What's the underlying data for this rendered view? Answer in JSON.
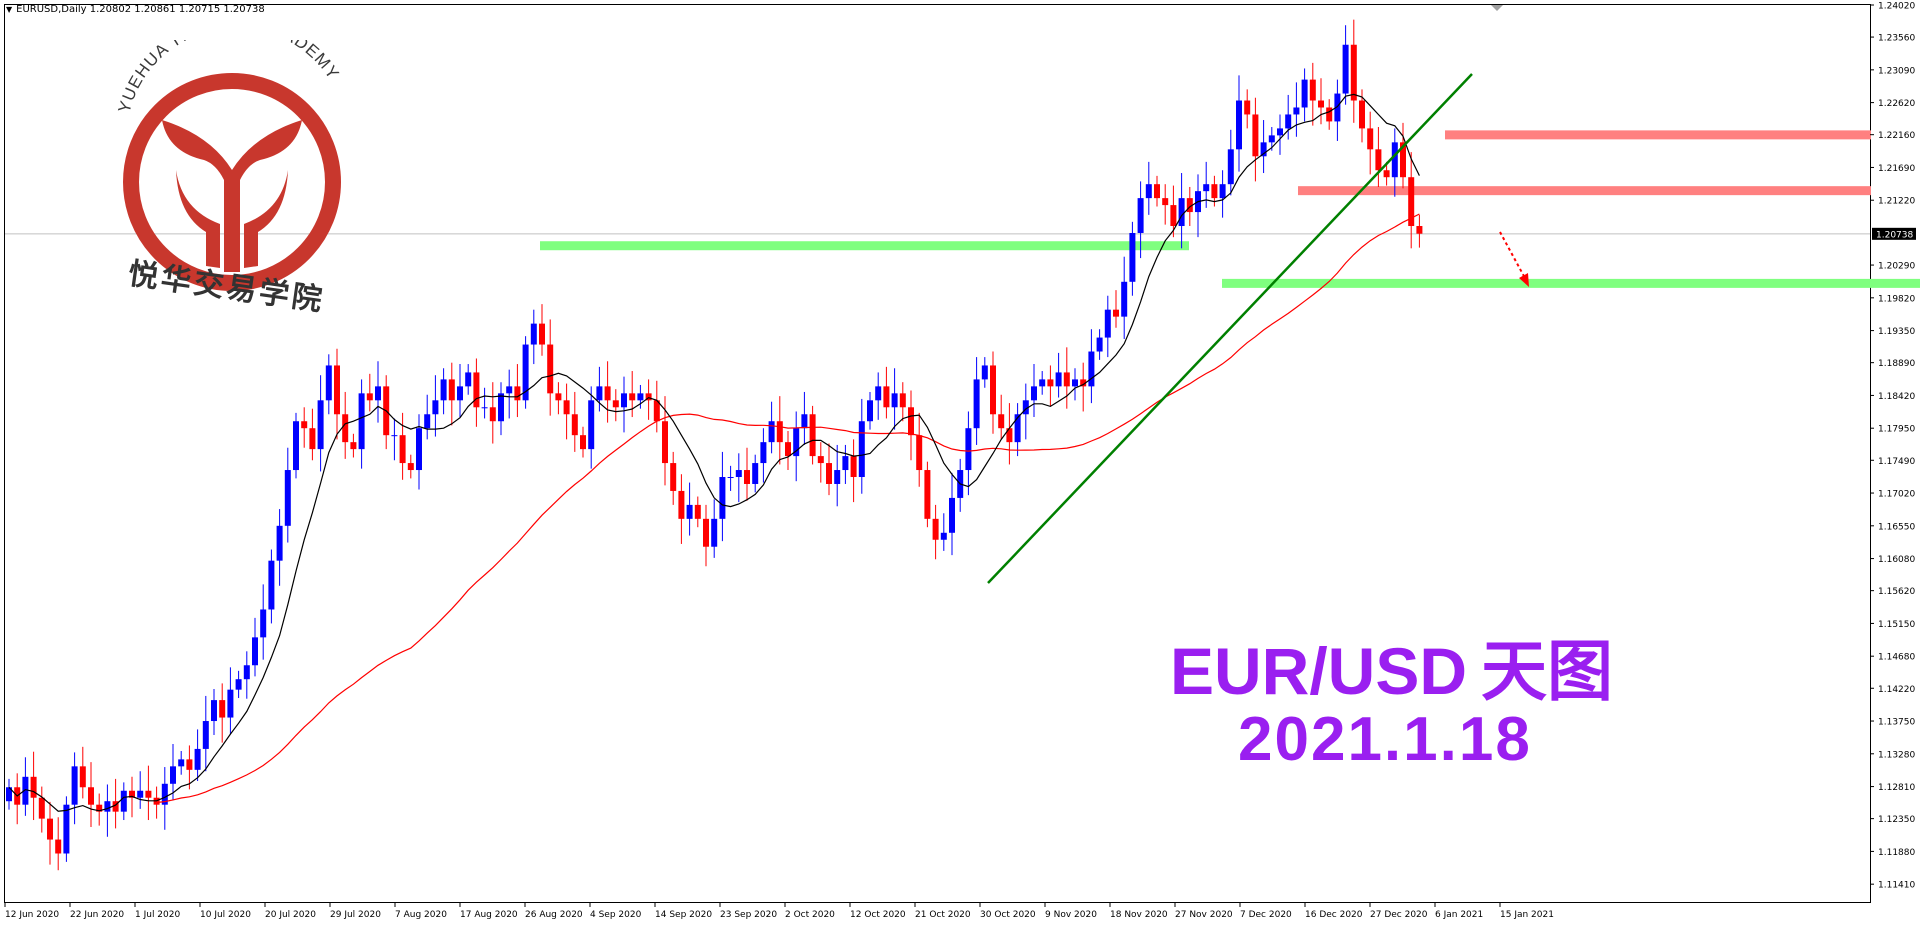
{
  "window": {
    "symbol_info": "EURUSD,Daily  1.20802 1.20861 1.20715 1.20738"
  },
  "logo": {
    "arc_text": "YUEHUA TRADING ACADEMY",
    "chinese_name": "悦华交易学院",
    "color": "#c8372d"
  },
  "overlay": {
    "title": "EUR/USD",
    "title_cn": "天图",
    "date": "2021.1.18",
    "color": "#9a1ff0"
  },
  "colors": {
    "bull": "#0000ff",
    "bear": "#ff0000",
    "ma_fast": "#000000",
    "ma_slow": "#ff0000",
    "trendline": "#008000",
    "support_zone": "#7fff7f",
    "resistance_zone": "#ff8080",
    "current_price_line": "#c0c0c0"
  },
  "chart_data": {
    "type": "candlestick",
    "symbol": "EURUSD",
    "timeframe": "Daily",
    "last_price": "1.20738",
    "ylim": [
      1.1114,
      1.2402
    ],
    "y_ticks": [
      "1.24020",
      "1.23560",
      "1.23090",
      "1.22620",
      "1.22160",
      "1.21690",
      "1.21220",
      "1.20738",
      "1.20290",
      "1.19820",
      "1.19350",
      "1.18890",
      "1.18420",
      "1.17950",
      "1.17490",
      "1.17020",
      "1.16550",
      "1.16080",
      "1.15620",
      "1.15150",
      "1.14680",
      "1.14220",
      "1.13750",
      "1.13280",
      "1.12810",
      "1.12350",
      "1.11880",
      "1.11410"
    ],
    "x_ticks": [
      "12 Jun 2020",
      "22 Jun 2020",
      "1 Jul 2020",
      "10 Jul 2020",
      "20 Jul 2020",
      "29 Jul 2020",
      "7 Aug 2020",
      "17 Aug 2020",
      "26 Aug 2020",
      "4 Sep 2020",
      "14 Sep 2020",
      "23 Sep 2020",
      "2 Oct 2020",
      "12 Oct 2020",
      "21 Oct 2020",
      "30 Oct 2020",
      "9 Nov 2020",
      "18 Nov 2020",
      "27 Nov 2020",
      "7 Dec 2020",
      "16 Dec 2020",
      "27 Dec 2020",
      "6 Jan 2021",
      "15 Jan 2021"
    ],
    "closes": [
      1.128,
      1.1255,
      1.1295,
      1.1265,
      1.1235,
      1.1205,
      1.1185,
      1.1255,
      1.131,
      1.128,
      1.1255,
      1.1245,
      1.126,
      1.1245,
      1.1275,
      1.1265,
      1.1275,
      1.1265,
      1.1255,
      1.1285,
      1.131,
      1.132,
      1.1305,
      1.1335,
      1.1375,
      1.1405,
      1.138,
      1.142,
      1.1435,
      1.1455,
      1.1495,
      1.1535,
      1.1605,
      1.1655,
      1.1735,
      1.1805,
      1.1795,
      1.1765,
      1.1835,
      1.1885,
      1.1815,
      1.1775,
      1.1765,
      1.1845,
      1.1835,
      1.1855,
      1.1785,
      1.1785,
      1.1745,
      1.1735,
      1.1795,
      1.1815,
      1.1835,
      1.1865,
      1.1835,
      1.1855,
      1.1875,
      1.1825,
      1.1825,
      1.1805,
      1.1845,
      1.1855,
      1.1835,
      1.1915,
      1.1945,
      1.1915,
      1.1845,
      1.1835,
      1.1815,
      1.1785,
      1.1765,
      1.1835,
      1.1855,
      1.1835,
      1.1825,
      1.1845,
      1.1835,
      1.1845,
      1.1835,
      1.1805,
      1.1745,
      1.1705,
      1.1665,
      1.1685,
      1.1665,
      1.1625,
      1.1665,
      1.1725,
      1.1725,
      1.1735,
      1.1715,
      1.1745,
      1.1775,
      1.1805,
      1.1775,
      1.1755,
      1.1795,
      1.1815,
      1.1755,
      1.1745,
      1.1715,
      1.1735,
      1.1755,
      1.1725,
      1.1805,
      1.1835,
      1.1855,
      1.1825,
      1.1845,
      1.1825,
      1.1785,
      1.1735,
      1.1665,
      1.1635,
      1.1645,
      1.1695,
      1.1735,
      1.1795,
      1.1865,
      1.1885,
      1.1815,
      1.1795,
      1.1775,
      1.1815,
      1.1835,
      1.1855,
      1.1865,
      1.1855,
      1.1875,
      1.1855,
      1.1865,
      1.1855,
      1.1905,
      1.1925,
      1.1965,
      1.1955,
      1.2005,
      1.2075,
      1.2125,
      1.2145,
      1.2125,
      1.2115,
      1.2085,
      1.2125,
      1.2105,
      1.2135,
      1.2145,
      1.2125,
      1.2145,
      1.2195,
      1.2265,
      1.2245,
      1.2185,
      1.2205,
      1.2215,
      1.2225,
      1.2245,
      1.2255,
      1.2295,
      1.2265,
      1.2255,
      1.2235,
      1.2275,
      1.2345,
      1.2265,
      1.2225,
      1.2195,
      1.2165,
      1.2155,
      1.2205,
      1.2155,
      1.2085,
      1.2074
    ],
    "support_levels": [
      1.2056,
      1.2002
    ],
    "resistance_levels": [
      1.2215,
      1.2135
    ]
  }
}
